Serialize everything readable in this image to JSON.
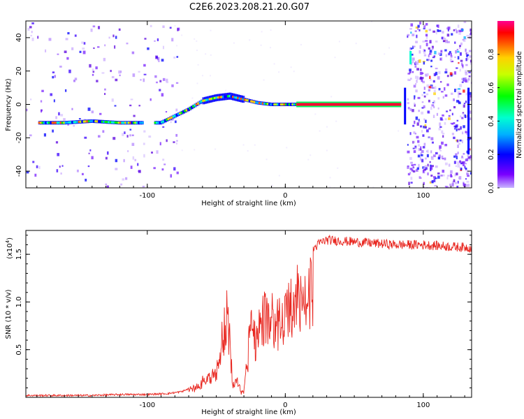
{
  "title": "C2E6.2023.208.21.20.G07",
  "chart_data": [
    {
      "type": "heatmap",
      "xlabel": "Height of straight line (km)",
      "ylabel": "Frequency (Hz)",
      "xlim": [
        -188,
        135
      ],
      "ylim": [
        -50,
        50
      ],
      "xticks": [
        -100,
        0,
        100
      ],
      "yticks": [
        -40,
        -20,
        0,
        20,
        40
      ],
      "colorbar": {
        "label": "Normalized spectral amplitude",
        "range": [
          0,
          1
        ],
        "ticks": [
          "0.0",
          "0.2",
          "0.4",
          "0.6",
          "0.8"
        ]
      },
      "trace": {
        "x": [
          -178,
          -160,
          -140,
          -120,
          -105,
          -95,
          -90,
          -80,
          -70,
          -60,
          -50,
          -40,
          -30,
          -20,
          -10,
          0,
          10,
          30,
          60,
          82
        ],
        "y": [
          -11,
          -11,
          -10,
          -11,
          -11,
          -11,
          -11,
          -7,
          -3,
          2,
          4,
          5,
          3,
          1,
          0,
          0,
          0,
          0,
          0,
          0
        ]
      }
    },
    {
      "type": "line",
      "xlabel": "Height of straight line (km)",
      "ylabel": "SNR (10 * v/v)",
      "y_multiplier": "(x10",
      "y_multiplier_exp": "4",
      "y_multiplier_close": ")",
      "xlim": [
        -188,
        135
      ],
      "ylim": [
        0,
        1.75
      ],
      "xticks": [
        -100,
        0,
        100
      ],
      "yticks": [
        "0.5",
        "1.0",
        "1.5"
      ],
      "series": [
        {
          "color": "#e8261f",
          "x": [
            -188,
            -160,
            -140,
            -120,
            -100,
            -85,
            -75,
            -65,
            -55,
            -50,
            -45,
            -42,
            -40,
            -38,
            -35,
            -32,
            -30,
            -27,
            -25,
            -22,
            -20,
            -15,
            -10,
            -5,
            0,
            5,
            10,
            15,
            20,
            25,
            30,
            40,
            50,
            60,
            80,
            100,
            120,
            135
          ],
          "y": [
            0.02,
            0.02,
            0.02,
            0.03,
            0.03,
            0.04,
            0.06,
            0.12,
            0.3,
            0.35,
            0.9,
            1.15,
            0.7,
            0.15,
            0.25,
            0.1,
            0.1,
            0.6,
            1.2,
            0.8,
            1.0,
            1.1,
            1.1,
            1.05,
            1.1,
            1.3,
            1.4,
            1.45,
            1.55,
            1.62,
            1.65,
            1.64,
            1.63,
            1.62,
            1.6,
            1.6,
            1.58,
            1.57
          ]
        }
      ]
    }
  ]
}
